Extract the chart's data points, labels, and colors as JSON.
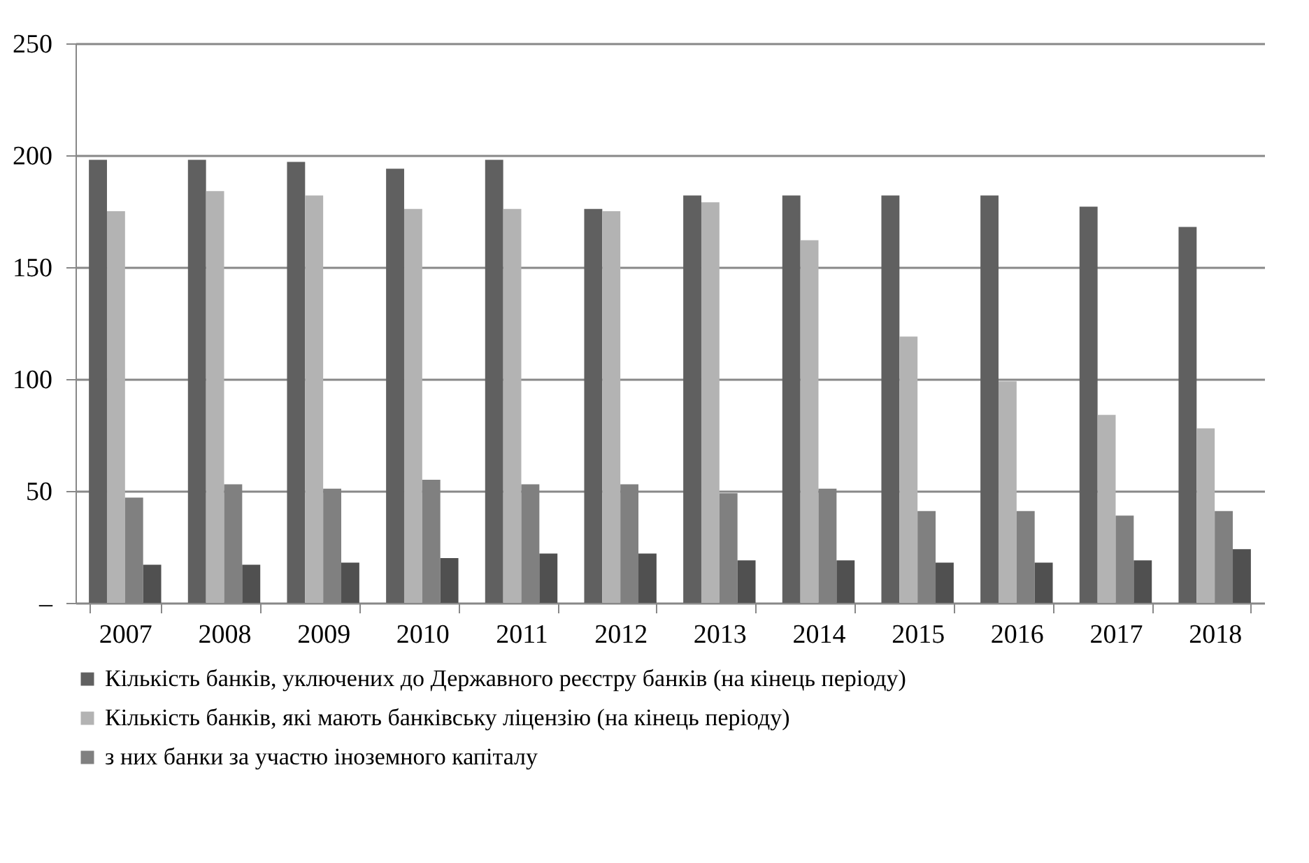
{
  "chart_data": {
    "type": "bar",
    "categories": [
      "2007",
      "2008",
      "2009",
      "2010",
      "2011",
      "2012",
      "2013",
      "2014",
      "2015",
      "2016",
      "2017",
      "2018"
    ],
    "series": [
      {
        "name": "Кількість банків, уключених до Державного реєстру банків (на кінець періоду)",
        "color": "#606060",
        "values": [
          198,
          198,
          197,
          194,
          198,
          176,
          182,
          182,
          182,
          182,
          177,
          168
        ]
      },
      {
        "name": "Кількість банків, які мають банківську ліцензію (на кінець періоду)",
        "color": "#b3b3b3",
        "values": [
          175,
          184,
          182,
          176,
          176,
          175,
          179,
          162,
          119,
          99,
          84,
          78
        ]
      },
      {
        "name": "з них банки за участю іноземного капіталу",
        "color": "#808080",
        "values": [
          47,
          53,
          51,
          55,
          53,
          53,
          49,
          51,
          41,
          41,
          39,
          41
        ]
      },
      {
        "color": "#505050",
        "values": [
          17,
          17,
          18,
          20,
          22,
          22,
          19,
          19,
          18,
          18,
          19,
          24
        ]
      }
    ],
    "ylim": [
      0,
      250
    ],
    "yticks": [
      {
        "value": 0,
        "label": "–"
      },
      50,
      100,
      150,
      200,
      250
    ],
    "grid": "y",
    "legend": "bottom"
  }
}
